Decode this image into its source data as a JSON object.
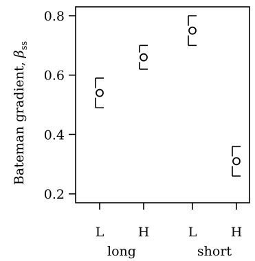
{
  "chart_data": {
    "type": "scatter",
    "ylabel": "Bateman gradient, ",
    "ylabel_symbol": "β",
    "ylabel_subscript": "ss",
    "ylim": [
      0.17,
      0.83
    ],
    "yticks": [
      {
        "value": 0.2,
        "label": "0.2"
      },
      {
        "value": 0.4,
        "label": "0.4"
      },
      {
        "value": 0.6,
        "label": "0.6"
      },
      {
        "value": 0.8,
        "label": "0.8"
      }
    ],
    "categories": [
      "L",
      "H",
      "L",
      "H"
    ],
    "groups": [
      {
        "label": "long",
        "categories": [
          0,
          1
        ]
      },
      {
        "label": "short",
        "categories": [
          2,
          3
        ]
      }
    ],
    "points": [
      {
        "category": "L",
        "group": "long",
        "value": 0.54,
        "lower": 0.49,
        "upper": 0.59
      },
      {
        "category": "H",
        "group": "long",
        "value": 0.66,
        "lower": 0.62,
        "upper": 0.7
      },
      {
        "category": "L",
        "group": "short",
        "value": 0.75,
        "lower": 0.7,
        "upper": 0.8
      },
      {
        "category": "H",
        "group": "short",
        "value": 0.31,
        "lower": 0.26,
        "upper": 0.36
      }
    ],
    "grid": false,
    "marker": "open-circle",
    "colors": {
      "ink": "#000000",
      "background": "#ffffff"
    }
  }
}
